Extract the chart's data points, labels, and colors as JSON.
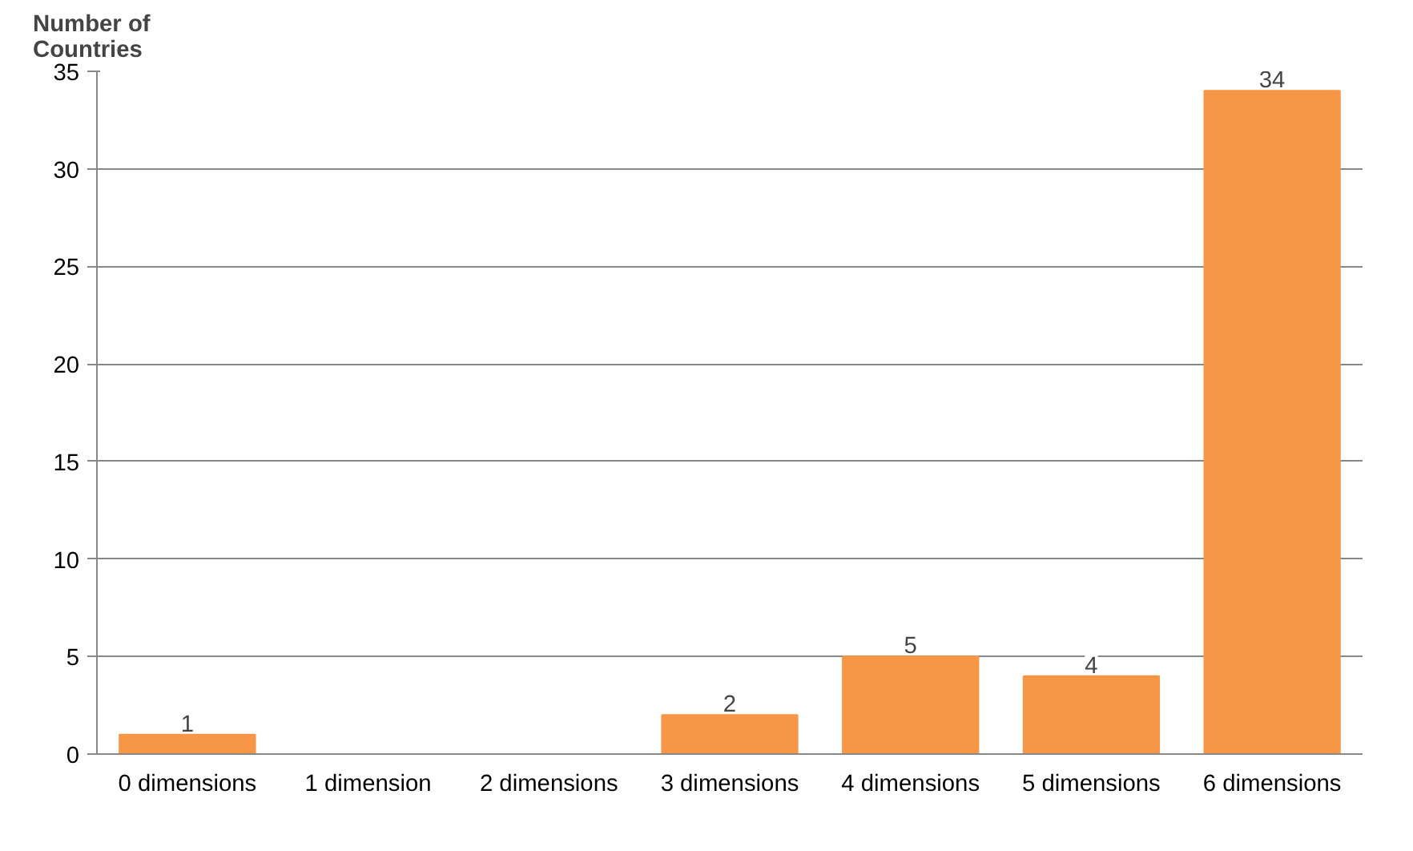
{
  "chart_data": {
    "type": "bar",
    "ylabel": "Number of Countries",
    "categories": [
      "0 dimensions",
      "1 dimension",
      "2 dimensions",
      "3 dimensions",
      "4 dimensions",
      "5 dimensions",
      "6 dimensions"
    ],
    "values": [
      1,
      0,
      0,
      2,
      5,
      4,
      34
    ],
    "value_labels": [
      "1",
      null,
      null,
      "2",
      "5",
      "4",
      "34"
    ],
    "color": "#f79646",
    "ylim": [
      0,
      35
    ],
    "yticks": [
      0,
      5,
      10,
      15,
      20,
      25,
      30,
      35
    ],
    "grid": "y"
  }
}
